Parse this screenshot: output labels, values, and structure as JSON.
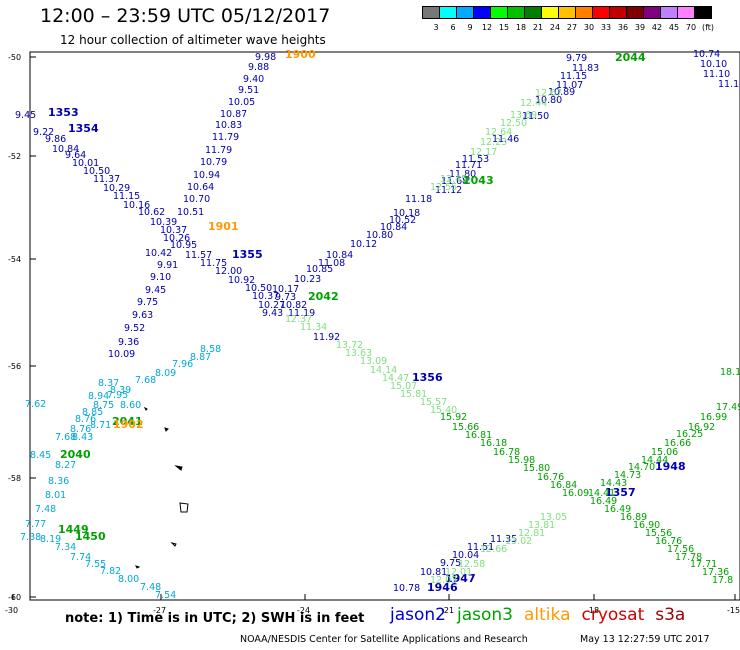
{
  "header": {
    "title": "12:00  –  23:59  UTC  05/12/2017",
    "subtitle": "12 hour collection of altimeter wave heights"
  },
  "scale": {
    "labels": [
      "3",
      "6",
      "9",
      "12",
      "15",
      "18",
      "21",
      "24",
      "27",
      "30",
      "33",
      "36",
      "39",
      "42",
      "45",
      "70",
      "(ft)"
    ],
    "colors": [
      "#777777",
      "#00ffff",
      "#00aaff",
      "#0000ff",
      "#00ff00",
      "#00c000",
      "#008000",
      "#ffff00",
      "#ffc000",
      "#ff8000",
      "#ff0000",
      "#c00000",
      "#800000",
      "#800080",
      "#c080ff",
      "#ff80ff",
      "#000000"
    ]
  },
  "axes": {
    "lat_labels": [
      "-50",
      "-52",
      "-54",
      "-56",
      "-58",
      "-60"
    ],
    "lon_labels": [
      "-30",
      "-27",
      "-24",
      "-21",
      "-18",
      "-15"
    ]
  },
  "tracks": [
    {
      "satellite": "jason2",
      "color": "#0000b0",
      "time_label": "1353",
      "time_pos": [
        48,
        116
      ],
      "pts": [
        [
          15,
          118,
          "9.45"
        ],
        [
          33,
          135,
          "9.22"
        ],
        [
          45,
          142,
          "9.86"
        ],
        [
          52,
          152,
          "10.84"
        ],
        [
          65,
          158,
          "9.64"
        ],
        [
          72,
          166,
          "10.01"
        ],
        [
          83,
          174,
          "10.50"
        ],
        [
          93,
          182,
          "11.37"
        ],
        [
          103,
          191,
          "10.29"
        ],
        [
          113,
          199,
          "11.15"
        ],
        [
          123,
          208,
          "10.16"
        ],
        [
          138,
          215,
          "10.62"
        ],
        [
          150,
          225,
          "10.39"
        ],
        [
          160,
          233,
          "10.37"
        ],
        [
          163,
          241,
          "10.26"
        ],
        [
          170,
          248,
          "10.95"
        ],
        [
          145,
          256,
          "10.42"
        ],
        [
          185,
          258,
          "11.57"
        ],
        [
          200,
          266,
          "11.75"
        ],
        [
          215,
          274,
          "12.00"
        ],
        [
          228,
          283,
          "10.92"
        ],
        [
          245,
          291,
          "10.50"
        ],
        [
          252,
          299,
          "10.37"
        ],
        [
          258,
          308,
          "10.27"
        ],
        [
          262,
          316,
          "9.43"
        ]
      ]
    },
    {
      "satellite": "jason2",
      "color": "#0000b0",
      "time_label": "1354",
      "time_pos": [
        68,
        132
      ],
      "pts": []
    },
    {
      "satellite": "jason2",
      "color": "#0000b0",
      "time_label": "1355",
      "time_pos": [
        232,
        258
      ],
      "pts": [
        [
          248,
          70,
          "9.88"
        ],
        [
          243,
          82,
          "9.40"
        ],
        [
          238,
          93,
          "9.51"
        ],
        [
          228,
          105,
          "10.05"
        ],
        [
          220,
          117,
          "10.87"
        ],
        [
          215,
          128,
          "10.83"
        ],
        [
          212,
          140,
          "11.79"
        ],
        [
          205,
          153,
          "11.79"
        ],
        [
          200,
          165,
          "10.79"
        ],
        [
          193,
          178,
          "10.94"
        ],
        [
          187,
          190,
          "10.64"
        ],
        [
          183,
          202,
          "10.70"
        ],
        [
          177,
          215,
          "10.51"
        ],
        [
          157,
          268,
          "9.91"
        ],
        [
          150,
          280,
          "9.10"
        ],
        [
          145,
          293,
          "9.45"
        ],
        [
          137,
          305,
          "9.75"
        ],
        [
          132,
          318,
          "9.63"
        ],
        [
          124,
          331,
          "9.52"
        ],
        [
          118,
          345,
          "9.36"
        ],
        [
          108,
          357,
          "10.09"
        ],
        [
          255,
          60,
          "9.98"
        ]
      ]
    },
    {
      "satellite": "jason2",
      "color": "#0000b0",
      "time_label": "1356",
      "time_pos": [
        412,
        381
      ],
      "pts": [
        [
          272,
          292,
          "10.17"
        ],
        [
          275,
          300,
          "9.73"
        ],
        [
          280,
          308,
          "10.82"
        ],
        [
          288,
          316,
          "11.19"
        ],
        [
          313,
          340,
          "11.92"
        ]
      ]
    },
    {
      "satellite": "jason2",
      "color": "#0000b0",
      "time_label": "1357",
      "time_pos": [
        605,
        496
      ],
      "pts": [
        [
          566,
          61,
          "9.79"
        ],
        [
          572,
          71,
          "11.83"
        ],
        [
          560,
          79,
          "11.15"
        ],
        [
          556,
          88,
          "11.07"
        ],
        [
          548,
          95,
          "10.89"
        ],
        [
          535,
          103,
          "10.80"
        ],
        [
          522,
          119,
          "11.50"
        ],
        [
          492,
          142,
          "11.46"
        ],
        [
          462,
          162,
          "11.53"
        ],
        [
          455,
          168,
          "11.71"
        ],
        [
          449,
          177,
          "11.80"
        ],
        [
          441,
          184,
          "11.68"
        ],
        [
          435,
          193,
          "11.12"
        ],
        [
          405,
          202,
          "11.18"
        ],
        [
          393,
          216,
          "10.18"
        ],
        [
          389,
          223,
          "10.52"
        ],
        [
          380,
          230,
          "10.84"
        ],
        [
          366,
          238,
          "10.80"
        ],
        [
          350,
          247,
          "10.12"
        ],
        [
          326,
          258,
          "10.84"
        ],
        [
          318,
          266,
          "11.08"
        ],
        [
          306,
          272,
          "10.85"
        ],
        [
          294,
          282,
          "10.23"
        ]
      ]
    },
    {
      "satellite": "jason2",
      "color": "#0000b0",
      "time_label": "1946",
      "time_pos": [
        427,
        591
      ],
      "pts": [
        [
          393,
          591,
          "10.78"
        ],
        [
          420,
          575,
          "10.81"
        ],
        [
          440,
          566,
          "9.75"
        ],
        [
          452,
          558,
          "10.04"
        ],
        [
          467,
          550,
          "11.51"
        ],
        [
          490,
          542,
          "11.35"
        ]
      ]
    },
    {
      "satellite": "jason2",
      "color": "#0000b0",
      "time_label": "1947",
      "time_pos": [
        445,
        582
      ],
      "pts": []
    },
    {
      "satellite": "jason2",
      "color": "#0000b0",
      "time_label": "1948",
      "time_pos": [
        655,
        470
      ],
      "pts": [
        [
          693,
          57,
          "10.74"
        ],
        [
          700,
          67,
          "10.10"
        ],
        [
          703,
          77,
          "11.10"
        ],
        [
          718,
          87,
          "11.1"
        ]
      ]
    },
    {
      "satellite": "jason3",
      "color": "#00a8d8",
      "time_label": "",
      "time_pos": [
        0,
        0
      ],
      "pts": [
        [
          200,
          352,
          "8.58"
        ],
        [
          190,
          360,
          "8.87"
        ],
        [
          172,
          367,
          "7.96"
        ],
        [
          155,
          376,
          "8.09"
        ],
        [
          135,
          383,
          "7.68"
        ],
        [
          98,
          386,
          "8.37"
        ],
        [
          110,
          393,
          "8.39"
        ],
        [
          88,
          399,
          "8.94"
        ],
        [
          93,
          408,
          "8.75"
        ],
        [
          107,
          398,
          "7.95"
        ],
        [
          120,
          408,
          "8.60"
        ],
        [
          82,
          415,
          "8.85"
        ],
        [
          75,
          422,
          "8.76"
        ],
        [
          70,
          432,
          "8.76"
        ],
        [
          90,
          428,
          "8.71"
        ],
        [
          55,
          440,
          "7.68"
        ],
        [
          72,
          440,
          "8.43"
        ],
        [
          30,
          458,
          "8.45"
        ],
        [
          55,
          468,
          "8.27"
        ],
        [
          48,
          484,
          "8.36"
        ],
        [
          45,
          498,
          "8.01"
        ],
        [
          35,
          512,
          "7.48"
        ],
        [
          25,
          527,
          "7.77"
        ],
        [
          20,
          540,
          "7.38"
        ],
        [
          40,
          542,
          "8.19"
        ],
        [
          55,
          550,
          "7.34"
        ],
        [
          70,
          560,
          "7.74"
        ],
        [
          85,
          567,
          "7.55"
        ],
        [
          100,
          574,
          "7.82"
        ],
        [
          118,
          582,
          "8.00"
        ],
        [
          140,
          590,
          "7.48"
        ],
        [
          155,
          598,
          "7.54"
        ],
        [
          25,
          407,
          "7.62"
        ]
      ]
    },
    {
      "satellite": "jason3",
      "color": "#00a000",
      "time_label": "2040",
      "time_pos": [
        60,
        458
      ],
      "pts": []
    },
    {
      "satellite": "jason3",
      "color": "#00a000",
      "time_label": "2041",
      "time_pos": [
        112,
        425
      ],
      "pts": []
    },
    {
      "satellite": "jason3",
      "color": "#00a000",
      "time_label": "1449",
      "time_pos": [
        58,
        533
      ],
      "pts": []
    },
    {
      "satellite": "jason3",
      "color": "#00a000",
      "time_label": "1450",
      "time_pos": [
        75,
        540
      ],
      "pts": []
    },
    {
      "satellite": "jason3",
      "color": "#00a000",
      "time_label": "2042",
      "time_pos": [
        308,
        300
      ],
      "pts": []
    },
    {
      "satellite": "jason3",
      "color": "#00a000",
      "time_label": "2043",
      "time_pos": [
        463,
        184
      ],
      "pts": []
    },
    {
      "satellite": "jason3",
      "color": "#00a000",
      "time_label": "2044",
      "time_pos": [
        615,
        61
      ],
      "pts": []
    },
    {
      "satellite": "jason3",
      "color": "#00a000",
      "time_label": "",
      "time_pos": [
        0,
        0
      ],
      "pts": [
        [
          440,
          420,
          "15.92"
        ],
        [
          452,
          430,
          "15.66"
        ],
        [
          465,
          438,
          "16.81"
        ],
        [
          480,
          446,
          "16.18"
        ],
        [
          493,
          455,
          "16.78"
        ],
        [
          508,
          463,
          "15.98"
        ],
        [
          523,
          471,
          "15.80"
        ],
        [
          537,
          480,
          "16.76"
        ],
        [
          550,
          488,
          "16.84"
        ],
        [
          562,
          496,
          "16.09"
        ],
        [
          590,
          504,
          "16.49"
        ],
        [
          604,
          512,
          "16.49"
        ],
        [
          620,
          520,
          "16.89"
        ],
        [
          633,
          528,
          "16.90"
        ],
        [
          645,
          536,
          "15.56"
        ],
        [
          655,
          544,
          "16.76"
        ],
        [
          667,
          552,
          "17.56"
        ],
        [
          675,
          560,
          "17.78"
        ],
        [
          690,
          567,
          "17.71"
        ],
        [
          702,
          575,
          "17.36"
        ],
        [
          712,
          583,
          "17.8"
        ],
        [
          720,
          375,
          "18.1"
        ],
        [
          716,
          410,
          "17.49"
        ],
        [
          700,
          420,
          "16.99"
        ],
        [
          688,
          430,
          "16.92"
        ],
        [
          676,
          437,
          "16.25"
        ],
        [
          664,
          446,
          "16.66"
        ],
        [
          651,
          455,
          "15.06"
        ],
        [
          641,
          463,
          "14.44"
        ],
        [
          628,
          470,
          "14.70"
        ],
        [
          614,
          478,
          "14.73"
        ],
        [
          600,
          486,
          "14.43"
        ],
        [
          588,
          496,
          "14.41"
        ]
      ]
    },
    {
      "satellite": "jason3",
      "color": "#80e080",
      "time_label": "",
      "time_pos": [
        0,
        0
      ],
      "pts": [
        [
          285,
          322,
          "12.37"
        ],
        [
          300,
          330,
          "11.34"
        ],
        [
          336,
          348,
          "13.72"
        ],
        [
          345,
          356,
          "13.63"
        ],
        [
          360,
          364,
          "13.09"
        ],
        [
          370,
          373,
          "14.14"
        ],
        [
          382,
          381,
          "14.47"
        ],
        [
          390,
          389,
          "15.07"
        ],
        [
          400,
          397,
          "15.81"
        ],
        [
          420,
          405,
          "15.57"
        ],
        [
          430,
          413,
          "15.40"
        ],
        [
          540,
          520,
          "13.05"
        ],
        [
          528,
          528,
          "13.81"
        ],
        [
          518,
          536,
          "12.81"
        ],
        [
          505,
          544,
          "13.02"
        ],
        [
          480,
          552,
          "12.66"
        ],
        [
          458,
          567,
          "12.58"
        ],
        [
          445,
          575,
          "12.01"
        ],
        [
          430,
          583,
          "12.03"
        ],
        [
          480,
          145,
          "12.23"
        ],
        [
          485,
          135,
          "12.64"
        ],
        [
          500,
          126,
          "12.50"
        ],
        [
          510,
          118,
          "13.69"
        ],
        [
          520,
          106,
          "12.44"
        ],
        [
          535,
          96,
          "12.67"
        ],
        [
          470,
          155,
          "12.17"
        ],
        [
          440,
          182,
          "12.45"
        ],
        [
          430,
          190,
          "12.55"
        ]
      ]
    },
    {
      "satellite": "altika",
      "color": "#ff9900",
      "time_label": "1900",
      "time_pos": [
        285,
        58
      ],
      "pts": []
    },
    {
      "satellite": "altika",
      "color": "#ff9900",
      "time_label": "1901",
      "time_pos": [
        208,
        230
      ],
      "pts": []
    },
    {
      "satellite": "altika",
      "color": "#ff9900",
      "time_label": "1902",
      "time_pos": [
        113,
        428
      ],
      "pts": []
    }
  ],
  "footer": {
    "note": "note:  1) Time is in UTC;  2) SWH is in feet",
    "credit": "NOAA/NESDIS Center for Satellite Applications and Research",
    "timestamp": "May 13 12:27:59 UTC 2017"
  },
  "legend": [
    {
      "name": "jason2",
      "color": "#0000cc"
    },
    {
      "name": "jason3",
      "color": "#00a000"
    },
    {
      "name": "altika",
      "color": "#ff9900"
    },
    {
      "name": "cryosat",
      "color": "#cc0000"
    },
    {
      "name": "s3a",
      "color": "#990000"
    }
  ]
}
